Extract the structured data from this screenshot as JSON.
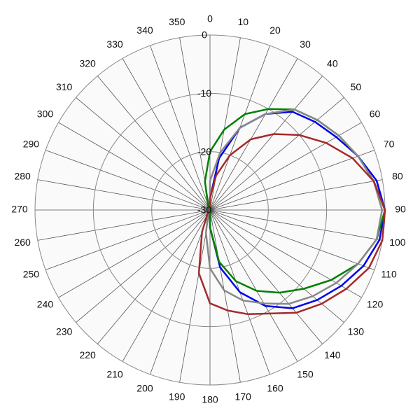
{
  "chart_data": {
    "type": "polar",
    "theta": [
      0,
      10,
      20,
      30,
      40,
      50,
      60,
      70,
      80,
      90,
      100,
      110,
      120,
      130,
      140,
      150,
      160,
      170,
      180,
      190,
      200,
      210,
      220,
      230,
      240,
      250,
      260,
      270,
      280,
      290,
      300,
      310,
      320,
      330,
      340,
      350
    ],
    "rlim": [
      -30,
      0
    ],
    "rticks": [
      0,
      -10,
      -20,
      -30
    ],
    "grid": true,
    "series": [
      {
        "color": "#0000ee",
        "values": [
          -28,
          -21,
          -15,
          -11,
          -8,
          -6.5,
          -5,
          -3,
          -1,
          0,
          -0.5,
          -2,
          -4,
          -6,
          -8,
          -11,
          -15,
          -20,
          -27,
          -30,
          -30,
          -30,
          -30,
          -30,
          -30,
          -30,
          -30,
          -30,
          -30,
          -30,
          -30,
          -30,
          -30,
          -30,
          -30,
          -30
        ]
      },
      {
        "color": "#008000",
        "values": [
          -20,
          -16,
          -12.5,
          -10,
          -7.5,
          -6,
          -4.5,
          -3,
          -1.5,
          0,
          -1,
          -3,
          -6,
          -9,
          -11.5,
          -14,
          -17,
          -21,
          -27,
          -30,
          -30,
          -30,
          -30,
          -30,
          -30,
          -30,
          -30,
          -30,
          -30,
          -30,
          -30,
          -30,
          -30,
          -30,
          -29,
          -25
        ]
      },
      {
        "color": "#888888",
        "values": [
          -25,
          -20,
          -15,
          -11,
          -7.5,
          -6,
          -4.5,
          -3,
          -1.5,
          -0.5,
          -1,
          -3,
          -5,
          -7,
          -9,
          -11.5,
          -13.5,
          -16,
          -20,
          -26,
          -29,
          -30,
          -30,
          -30,
          -30,
          -30,
          -30,
          -30,
          -30,
          -30,
          -30,
          -30,
          -30,
          -30,
          -30,
          -30
        ]
      },
      {
        "color": "#a52a2a",
        "values": [
          -28,
          -24,
          -20,
          -16,
          -13,
          -10,
          -7,
          -4,
          -1.5,
          0,
          0,
          -1,
          -3,
          -5,
          -7,
          -9.5,
          -11,
          -12.5,
          -14,
          -19,
          -26,
          -29,
          -30,
          -30,
          -30,
          -30,
          -30,
          -30,
          -30,
          -30,
          -30,
          -30,
          -30,
          -30,
          -30,
          -30
        ]
      }
    ]
  }
}
